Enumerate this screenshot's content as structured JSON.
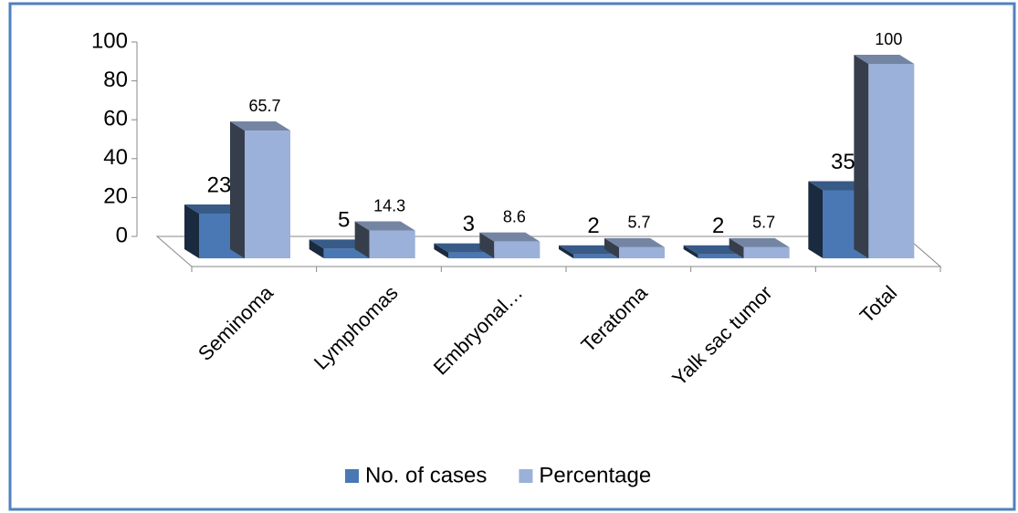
{
  "chart_data": {
    "type": "bar3d",
    "categories": [
      "Seminoma",
      "Lymphomas",
      "Embryonal…",
      "Teratoma",
      "Yalk sac tumor",
      "Total"
    ],
    "series": [
      {
        "name": "No. of cases",
        "color": "#4a78b4",
        "values": [
          23,
          5,
          3,
          2,
          2,
          35
        ]
      },
      {
        "name": "Percentage",
        "color": "#9bb1d9",
        "values": [
          65.7,
          14.3,
          8.6,
          5.7,
          5.7,
          100
        ]
      }
    ],
    "ylim": [
      0,
      100
    ],
    "yticks": [
      0,
      20,
      40,
      60,
      80,
      100
    ],
    "legend": "bottom"
  }
}
